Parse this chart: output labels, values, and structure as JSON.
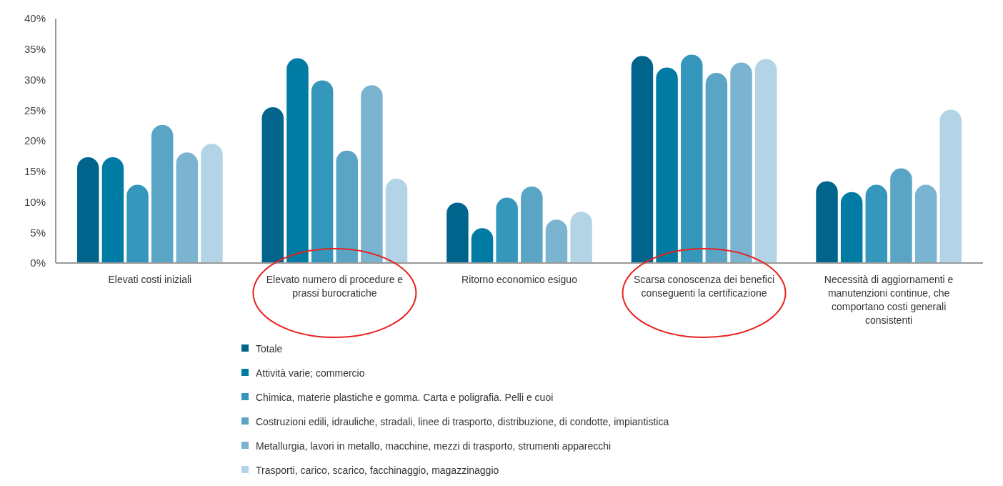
{
  "chart_data": {
    "type": "bar",
    "categories": [
      "Elevati costi iniziali",
      "Elevato numero di procedure e prassi burocratiche",
      "Ritorno economico esiguo",
      "Scarsa conoscenza dei benefici conseguenti la certificazione",
      "Necessità di aggiornamenti e manutenzioni continue, che comportano costi generali consistenti"
    ],
    "series": [
      {
        "name": "Totale",
        "color": "#00648c",
        "values": [
          17.3,
          25.5,
          9.9,
          33.9,
          13.4
        ]
      },
      {
        "name": "Attività varie; commercio",
        "color": "#007ba3",
        "values": [
          17.3,
          33.5,
          5.7,
          32.0,
          11.6
        ]
      },
      {
        "name": "Chimica, materie plastiche e gomma. Carta e poligrafia. Pelli e cuoi",
        "color": "#3597bb",
        "values": [
          12.8,
          29.9,
          10.7,
          34.1,
          12.8
        ]
      },
      {
        "name": "Costruzioni edili, idrauliche, stradali, linee di trasporto, distribuzione, di condotte, impiantistica",
        "color": "#5aa5c6",
        "values": [
          22.6,
          18.4,
          12.5,
          31.1,
          15.5
        ]
      },
      {
        "name": "Metallurgia, lavori in metallo, macchine, mezzi di trasporto, strumenti apparecchi",
        "color": "#7ab4d1",
        "values": [
          18.1,
          29.1,
          7.1,
          32.8,
          12.8
        ]
      },
      {
        "name": "Trasporti, carico, scarico, facchinaggio, magazzinaggio",
        "color": "#b3d4e6",
        "values": [
          19.5,
          13.8,
          8.4,
          33.4,
          25.1
        ]
      }
    ],
    "ylim": [
      0,
      40
    ],
    "yticks": [
      {
        "value": 0,
        "label": "0%"
      },
      {
        "value": 5,
        "label": "5%"
      },
      {
        "value": 10,
        "label": "10%"
      },
      {
        "value": 15,
        "label": "15%"
      },
      {
        "value": 20,
        "label": "20%"
      },
      {
        "value": 25,
        "label": "25%"
      },
      {
        "value": 30,
        "label": "30%"
      },
      {
        "value": 35,
        "label": "35%"
      },
      {
        "value": 40,
        "label": "40%"
      }
    ],
    "grid": false,
    "legend": "bottom"
  }
}
